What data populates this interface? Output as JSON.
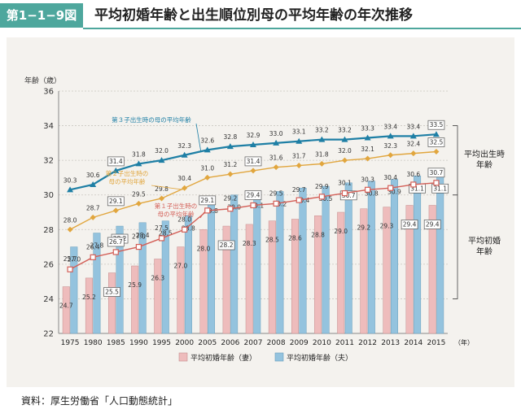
{
  "header": {
    "badge": "第1−1−9図",
    "title": "平均初婚年齢と出生順位別母の平均年齢の年次推移"
  },
  "source": "資料：厚生労働省「人口動態統計」",
  "colors": {
    "accent": "#4ea79d",
    "wife_bar": "#eebcbc",
    "husband_bar": "#94c3de",
    "first_child_line": "#d35f57",
    "second_child_line": "#e1a63e",
    "third_child_line": "#1e7fa5"
  },
  "chart_data": {
    "type": "bar",
    "ylabel": "年齢（歳）",
    "xunit": "（年）",
    "ylim": [
      22,
      36
    ],
    "yticks": [
      "22",
      "24",
      "26",
      "28",
      "30",
      "32",
      "34",
      "36"
    ],
    "categories": [
      "1975",
      "1980",
      "1985",
      "1990",
      "1995",
      "2000",
      "2005",
      "2006",
      "2007",
      "2008",
      "2009",
      "2010",
      "2011",
      "2012",
      "2013",
      "2014",
      "2015"
    ],
    "bar_series": [
      {
        "name": "平均初婚年齢（妻）",
        "values": [
          24.7,
          25.2,
          25.5,
          25.9,
          26.3,
          27.0,
          28.0,
          28.2,
          28.3,
          28.5,
          28.6,
          28.8,
          29.0,
          29.2,
          29.3,
          29.4,
          29.4
        ],
        "labels": [
          "24.7",
          "25.2",
          "25.5",
          "25.9",
          "26.3",
          "27.0",
          "28.0",
          "28.2",
          "28.3",
          "28.5",
          "28.6",
          "28.8",
          "29.0",
          "29.2",
          "29.3",
          "29.4",
          "29.4"
        ]
      },
      {
        "name": "平均初婚年齢（夫）",
        "values": [
          27.0,
          27.8,
          28.2,
          28.4,
          28.5,
          28.8,
          29.8,
          30.0,
          30.1,
          30.2,
          30.4,
          30.5,
          30.7,
          30.8,
          30.9,
          31.1,
          31.1
        ],
        "labels": [
          "27.0",
          "27.8",
          "28.2",
          "28.4",
          "28.5",
          "28.8",
          "29.8",
          "30.0",
          "30.1",
          "30.2",
          "30.4",
          "30.5",
          "30.7",
          "30.8",
          "30.9",
          "31.1",
          "31.1"
        ]
      }
    ],
    "line_series": [
      {
        "name": "第３子出生時の母の平均年齢",
        "values": [
          30.3,
          30.6,
          31.4,
          31.8,
          32.0,
          32.3,
          32.6,
          32.8,
          32.9,
          33.0,
          33.1,
          33.2,
          33.2,
          33.3,
          33.4,
          33.4,
          33.5
        ],
        "labels": [
          "30.3",
          "30.6",
          "31.4",
          "31.8",
          "32.0",
          "32.3",
          "32.6",
          "32.8",
          "32.9",
          "33.0",
          "33.1",
          "33.2",
          "33.2",
          "33.3",
          "33.4",
          "33.4",
          "33.5"
        ]
      },
      {
        "name": "第２子出生時の母の平均年齢",
        "values": [
          28.0,
          28.7,
          29.1,
          29.5,
          29.8,
          30.4,
          31.0,
          31.2,
          31.4,
          31.6,
          31.7,
          31.8,
          32.0,
          32.1,
          32.3,
          32.4,
          32.5
        ],
        "labels": [
          "28.0",
          "28.7",
          "29.1",
          "29.5",
          "29.8",
          "30.4",
          "31.0",
          "31.2",
          "31.4",
          "31.6",
          "31.7",
          "31.8",
          "32.0",
          "32.1",
          "32.3",
          "32.4",
          "32.5"
        ]
      },
      {
        "name": "第１子出生時の母の平均年齢",
        "values": [
          25.7,
          26.4,
          26.7,
          27.0,
          27.5,
          28.0,
          29.1,
          29.2,
          29.4,
          29.5,
          29.7,
          29.9,
          30.1,
          30.3,
          30.4,
          30.6,
          30.7
        ],
        "labels": [
          "25.7",
          "26.4",
          "26.7",
          "27.0",
          "27.5",
          "28.0",
          "29.1",
          "29.2",
          "29.4",
          "29.5",
          "29.7",
          "29.9",
          "30.1",
          "30.3",
          "30.4",
          "30.6",
          "30.7"
        ]
      }
    ],
    "boxed_labels": [
      "31.4",
      "29.1",
      "26.7",
      "28.2",
      "25.5",
      "33.5",
      "32.5",
      "30.7",
      "31.1",
      "29.4"
    ],
    "group_brackets": [
      {
        "label": [
          "平均出生時",
          "年齢"
        ],
        "range": [
          30,
          34
        ]
      },
      {
        "label": [
          "平均初婚",
          "年齢"
        ],
        "range": [
          24,
          30
        ]
      }
    ],
    "legend": {
      "position": "bottom-center",
      "items": [
        "平均初婚年齢（妻）",
        "平均初婚年齢（夫）"
      ]
    },
    "grid": true
  }
}
